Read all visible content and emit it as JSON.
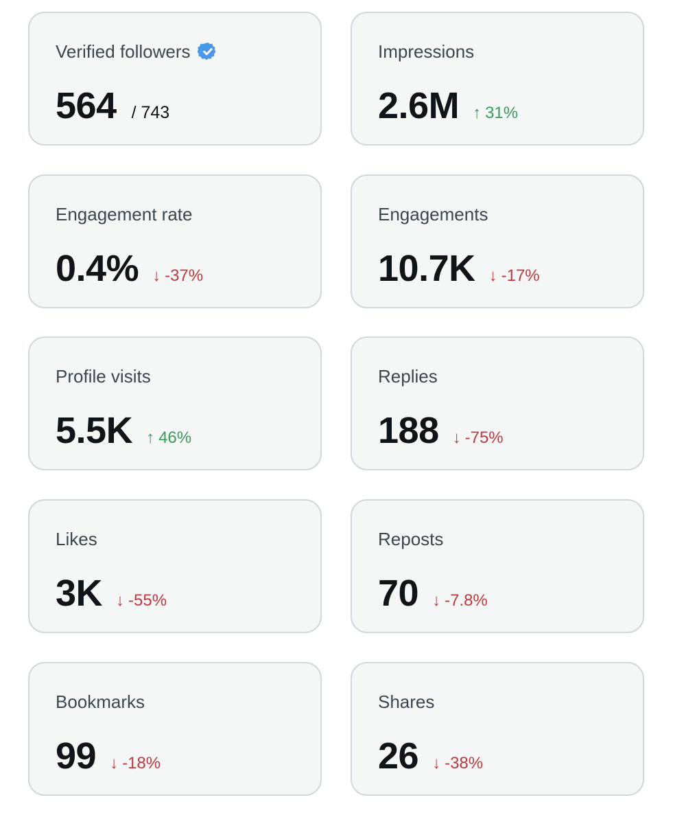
{
  "colors": {
    "card_background": "#f5f6f6",
    "card_border": "#cfd9de",
    "label_text": "#3b4651",
    "value_text": "#0f1419",
    "positive": "#3a9b5d",
    "negative": "#c0393f",
    "verified_badge": "#4a99e9"
  },
  "metrics": [
    {
      "label": "Verified followers",
      "value": "564",
      "total": "/ 743",
      "badge_icon": "verified-badge-icon"
    },
    {
      "label": "Impressions",
      "value": "2.6M",
      "change": "31%",
      "direction": "up",
      "arrow": "↑"
    },
    {
      "label": "Engagement rate",
      "value": "0.4%",
      "change": "-37%",
      "direction": "down",
      "arrow": "↓"
    },
    {
      "label": "Engagements",
      "value": "10.7K",
      "change": "-17%",
      "direction": "down",
      "arrow": "↓"
    },
    {
      "label": "Profile visits",
      "value": "5.5K",
      "change": "46%",
      "direction": "up",
      "arrow": "↑"
    },
    {
      "label": "Replies",
      "value": "188",
      "change": "-75%",
      "direction": "down",
      "arrow": "↓"
    },
    {
      "label": "Likes",
      "value": "3K",
      "change": "-55%",
      "direction": "down",
      "arrow": "↓"
    },
    {
      "label": "Reposts",
      "value": "70",
      "change": "-7.8%",
      "direction": "down",
      "arrow": "↓"
    },
    {
      "label": "Bookmarks",
      "value": "99",
      "change": "-18%",
      "direction": "down",
      "arrow": "↓"
    },
    {
      "label": "Shares",
      "value": "26",
      "change": "-38%",
      "direction": "down",
      "arrow": "↓"
    }
  ]
}
